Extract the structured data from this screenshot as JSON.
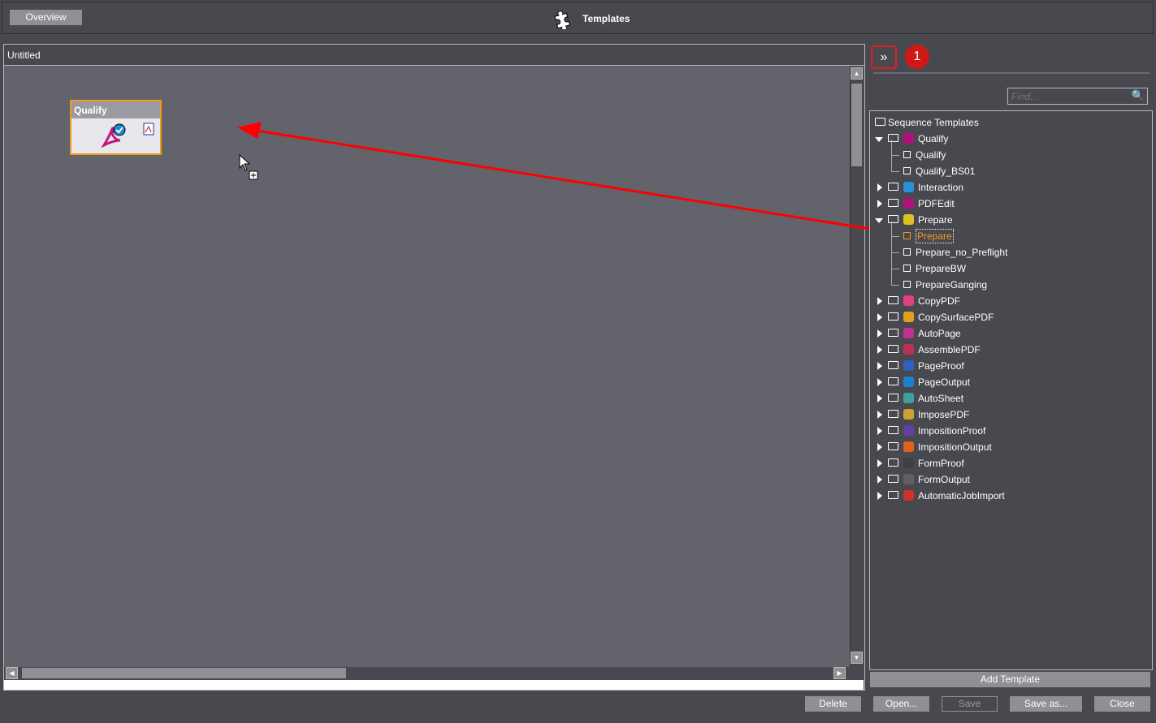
{
  "header": {
    "overview_label": "Overview",
    "title": "Templates"
  },
  "editor": {
    "tab_title": "Untitled",
    "node": {
      "label": "Qualify"
    }
  },
  "side": {
    "expand_label": "»",
    "badge": "1",
    "find_placeholder": "Find...",
    "tree_root": "Sequence Templates",
    "groups": [
      {
        "label": "Qualify",
        "expanded": true,
        "color": "#b0107a",
        "children": [
          "Qualify",
          "Qualify_BS01"
        ]
      },
      {
        "label": "Interaction",
        "expanded": false,
        "color": "#2a8fd6",
        "children": []
      },
      {
        "label": "PDFEdit",
        "expanded": false,
        "color": "#b0107a",
        "children": []
      },
      {
        "label": "Prepare",
        "expanded": true,
        "color": "#e0c020",
        "children": [
          "Prepare",
          "Prepare_no_Preflight",
          "PrepareBW",
          "PrepareGanging"
        ],
        "selected": "Prepare"
      },
      {
        "label": "CopyPDF",
        "expanded": false,
        "color": "#e04080",
        "children": []
      },
      {
        "label": "CopySurfacePDF",
        "expanded": false,
        "color": "#e0a020",
        "children": []
      },
      {
        "label": "AutoPage",
        "expanded": false,
        "color": "#c03090",
        "children": []
      },
      {
        "label": "AssemblePDF",
        "expanded": false,
        "color": "#c03050",
        "children": []
      },
      {
        "label": "PageProof",
        "expanded": false,
        "color": "#3060c0",
        "children": []
      },
      {
        "label": "PageOutput",
        "expanded": false,
        "color": "#2080d0",
        "children": []
      },
      {
        "label": "AutoSheet",
        "expanded": false,
        "color": "#40a0a0",
        "children": []
      },
      {
        "label": "ImposePDF",
        "expanded": false,
        "color": "#d0a030",
        "children": []
      },
      {
        "label": "ImpositionProof",
        "expanded": false,
        "color": "#6040a0",
        "children": []
      },
      {
        "label": "ImpositionOutput",
        "expanded": false,
        "color": "#e06020",
        "children": []
      },
      {
        "label": "FormProof",
        "expanded": false,
        "color": "#404040",
        "children": []
      },
      {
        "label": "FormOutput",
        "expanded": false,
        "color": "#606060",
        "children": []
      },
      {
        "label": "AutomaticJobImport",
        "expanded": false,
        "color": "#d03030",
        "children": []
      }
    ],
    "add_template_label": "Add Template"
  },
  "footer": {
    "delete": "Delete",
    "open": "Open...",
    "save": "Save",
    "save_as": "Save as...",
    "close": "Close"
  },
  "colors": {
    "accent": "#f39a1d",
    "annotation": "#ff0000"
  }
}
